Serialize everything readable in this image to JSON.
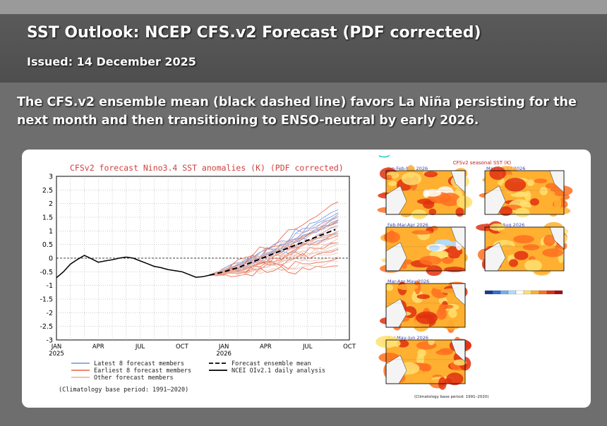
{
  "page": {
    "title": "SST Outlook: NCEP CFS.v2 Forecast (PDF corrected)",
    "issued": "Issued: 14 December 2025",
    "headline": "The CFS.v2 ensemble mean (black dashed line) favors La Niña persisting for the next month and then transitioning to ENSO-neutral by early 2026."
  },
  "chart_data": [
    {
      "type": "line",
      "title": "CFSv2 forecast Nino3.4 SST anomalies (K) (PDF corrected)",
      "ylim": [
        -3,
        3
      ],
      "yticks": [
        "3",
        "2.5",
        "2",
        "1.5",
        "1",
        "0.5",
        "0",
        "-0.5",
        "-1",
        "-1.5",
        "-2",
        "-2.5",
        "-3"
      ],
      "xticks": [
        {
          "label": "JAN",
          "sub": "2025",
          "month": 0
        },
        {
          "label": "APR",
          "sub": "",
          "month": 3
        },
        {
          "label": "JUL",
          "sub": "",
          "month": 6
        },
        {
          "label": "OCT",
          "sub": "",
          "month": 9
        },
        {
          "label": "JAN",
          "sub": "2026",
          "month": 12
        },
        {
          "label": "APR",
          "sub": "",
          "month": 15
        },
        {
          "label": "JUL",
          "sub": "",
          "month": 18
        },
        {
          "label": "OCT",
          "sub": "",
          "month": 21
        }
      ],
      "xlim_months": [
        0,
        21
      ],
      "grid": true,
      "observed": {
        "name": "NCEI OIv2.1 daily analysis",
        "months": [
          0,
          0.5,
          1,
          1.5,
          2,
          2.5,
          3,
          3.5,
          4,
          4.5,
          5,
          5.5,
          6,
          6.5,
          7,
          7.5,
          8,
          8.5,
          9,
          9.5,
          10,
          10.5,
          11
        ],
        "values": [
          -0.72,
          -0.5,
          -0.22,
          -0.05,
          0.1,
          -0.02,
          -0.15,
          -0.1,
          -0.06,
          0.0,
          0.04,
          0.0,
          -0.1,
          -0.2,
          -0.3,
          -0.35,
          -0.42,
          -0.46,
          -0.5,
          -0.6,
          -0.7,
          -0.68,
          -0.62
        ]
      },
      "ensemble_mean": {
        "name": "Forecast ensemble mean",
        "months": [
          11,
          12,
          13,
          14,
          15,
          16,
          17,
          18,
          19,
          20
        ],
        "values": [
          -0.62,
          -0.5,
          -0.35,
          -0.15,
          0.05,
          0.25,
          0.45,
          0.65,
          0.85,
          1.05
        ]
      },
      "member_groups": [
        {
          "name": "Latest 8 forecast members",
          "color": "#7090e0",
          "final_values": [
            1.8,
            1.7,
            1.6,
            1.5,
            1.3,
            1.2,
            1.4,
            0.9
          ]
        },
        {
          "name": "Earliest 8 forecast members",
          "color": "#e86040",
          "final_values": [
            2.1,
            1.4,
            1.0,
            0.8,
            0.6,
            0.3,
            0.0,
            -0.3
          ]
        },
        {
          "name": "Other forecast members",
          "color": "#e8b0a0",
          "final_values": [
            1.6,
            1.5,
            1.3,
            1.2,
            1.1,
            1.0,
            0.9,
            0.8,
            0.7,
            0.5,
            0.4,
            0.3,
            0.2,
            0.0,
            -0.1,
            0.6,
            1.4,
            0.95
          ]
        }
      ],
      "legend": [
        {
          "label": "Latest 8 forecast members",
          "color": "#7090e0",
          "style": "solid"
        },
        {
          "label": "Earliest 8 forecast members",
          "color": "#e86040",
          "style": "solid"
        },
        {
          "label": "Other forecast members",
          "color": "#e8b0a0",
          "style": "solid"
        },
        {
          "label": "Forecast ensemble mean",
          "color": "#000000",
          "style": "dashed"
        },
        {
          "label": "NCEI OIv2.1 daily analysis",
          "color": "#000000",
          "style": "solid"
        }
      ],
      "footnote": "(Climatology base period: 1991–2020)"
    },
    {
      "type": "heatmap",
      "title": "CFSv2 seasonal SST (K)",
      "panels": [
        "Jan-Feb-Mar 2026",
        "Feb-Mar-Apr 2026",
        "Mar-Apr-May 2026",
        "Apr-May-Jun 2026",
        "May-Jun-Jul 2026",
        "Jun-Jul-Aug 2026"
      ],
      "colorbar": [
        "#1a3a9a",
        "#3070d0",
        "#70b0f0",
        "#b0dcff",
        "#ffffff",
        "#ffe070",
        "#ffb030",
        "#ff7020",
        "#e03010",
        "#a01010"
      ],
      "footnote": "(Climatology base period: 1991–2020)"
    }
  ]
}
